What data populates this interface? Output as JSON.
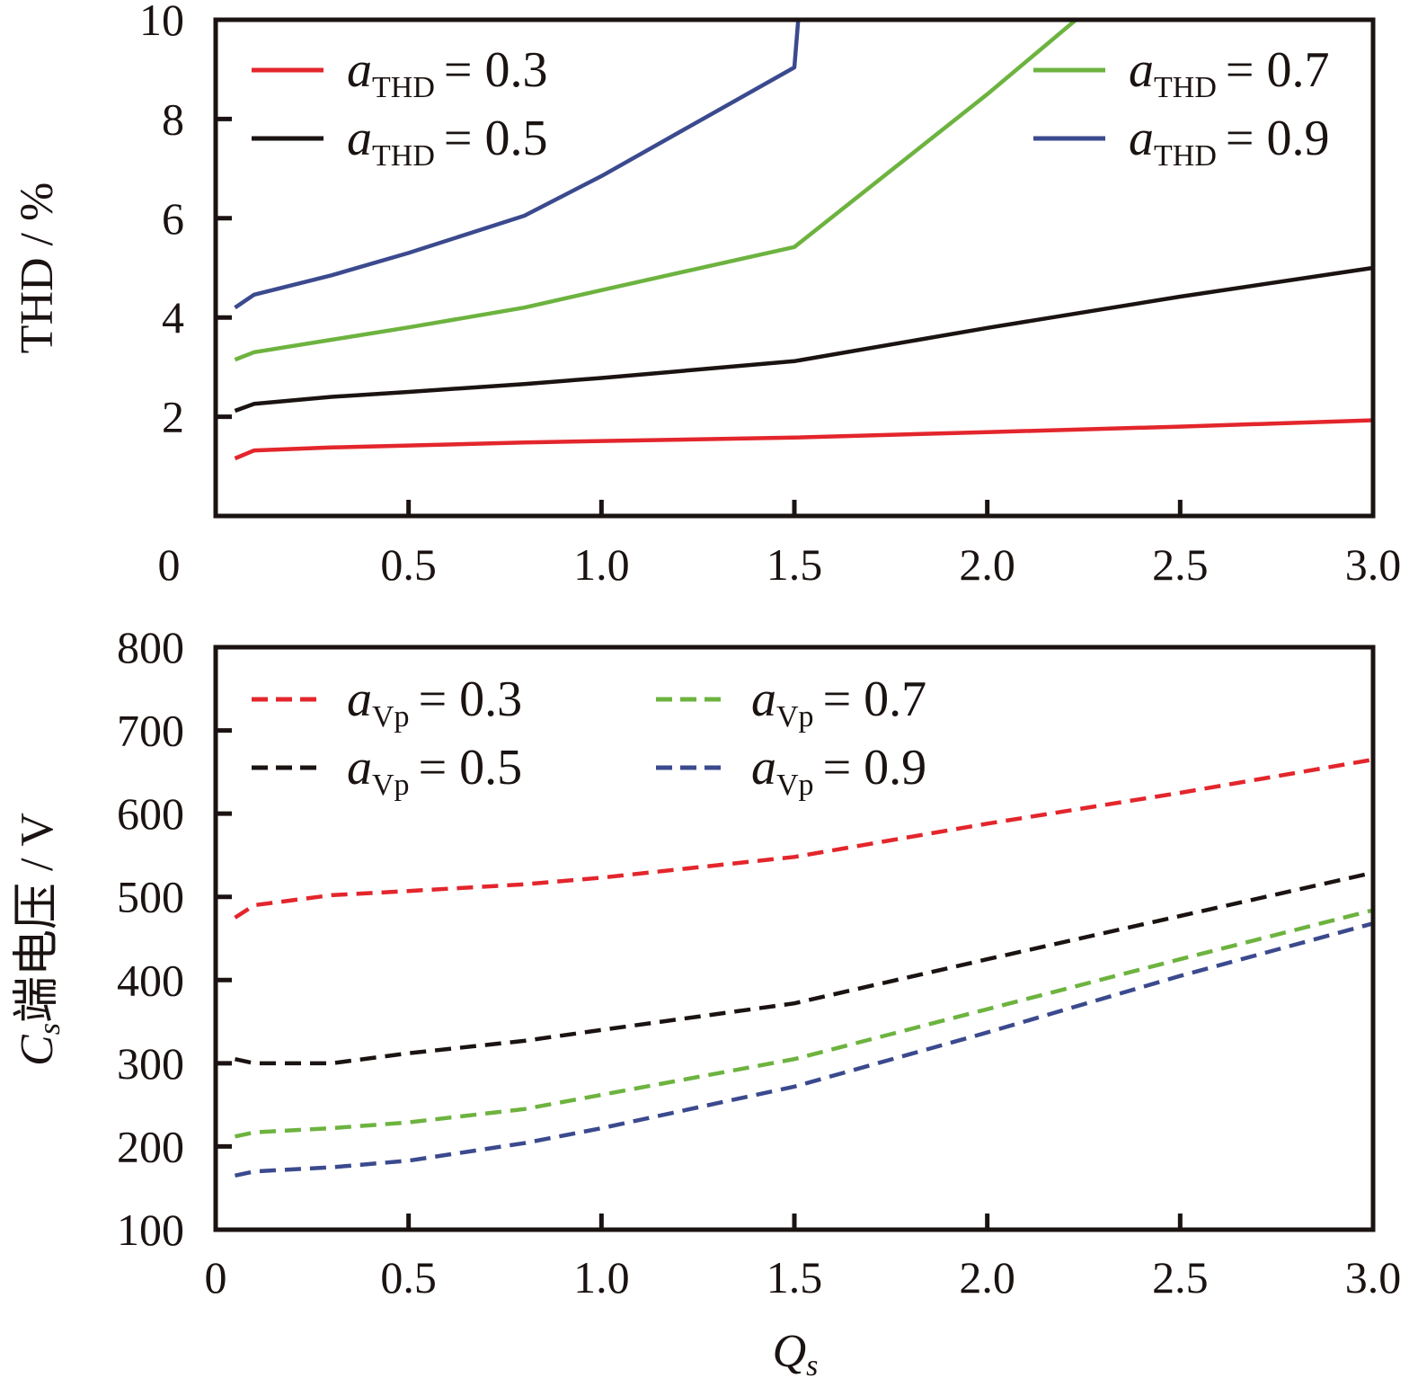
{
  "chart_data": [
    {
      "id": "thd",
      "type": "line",
      "title": "",
      "xlabel": "",
      "ylabel": "THD / %",
      "xlim": [
        0,
        3.0
      ],
      "ylim": [
        0,
        10
      ],
      "xticks": [
        0.5,
        1.0,
        1.5,
        2.0,
        2.5,
        3.0
      ],
      "xtick_labels": [
        "0.5",
        "1.0",
        "1.5",
        "2.0",
        "2.5",
        "3.0"
      ],
      "yticks": [
        2,
        4,
        6,
        8,
        10
      ],
      "ytick_labels": [
        "2",
        "4",
        "6",
        "8",
        "10"
      ],
      "origin_label": "0",
      "grid": false,
      "line_style": "solid",
      "legend_symbol": "a",
      "legend_subscript": "THD",
      "legend_placement": [
        "top-left",
        "top-right"
      ],
      "series": [
        {
          "name": "a_THD = 0.3",
          "value_label": "= 0.3",
          "color": "#e3262c",
          "x": [
            0.05,
            0.1,
            0.3,
            0.5,
            0.8,
            1.0,
            1.5,
            2.0,
            2.5,
            3.0
          ],
          "y": [
            1.16,
            1.32,
            1.38,
            1.42,
            1.48,
            1.51,
            1.58,
            1.69,
            1.8,
            1.93
          ]
        },
        {
          "name": "a_THD = 0.5",
          "value_label": "= 0.5",
          "color": "#1a1311",
          "x": [
            0.05,
            0.1,
            0.3,
            0.5,
            0.8,
            1.0,
            1.5,
            2.0,
            2.5,
            3.0
          ],
          "y": [
            2.12,
            2.26,
            2.4,
            2.5,
            2.66,
            2.78,
            3.12,
            3.79,
            4.42,
            5.0
          ]
        },
        {
          "name": "a_THD = 0.7",
          "value_label": "= 0.7",
          "color": "#6db33f",
          "x": [
            0.05,
            0.1,
            0.3,
            0.5,
            0.8,
            1.0,
            1.5,
            2.0,
            2.23
          ],
          "y": [
            3.15,
            3.3,
            3.55,
            3.8,
            4.2,
            4.55,
            5.42,
            8.5,
            10.0
          ]
        },
        {
          "name": "a_THD = 0.9",
          "value_label": "= 0.9",
          "color": "#3b4a8e",
          "x": [
            0.05,
            0.1,
            0.3,
            0.5,
            0.8,
            1.0,
            1.5,
            1.51
          ],
          "y": [
            4.2,
            4.46,
            4.85,
            5.3,
            6.05,
            6.85,
            9.04,
            10.0
          ]
        }
      ]
    },
    {
      "id": "voltage",
      "type": "line",
      "title": "",
      "xlabel": "Q",
      "xlabel_sub": "s",
      "ylabel": "端电压 / V",
      "ylabel_prefix": "C",
      "ylabel_prefix_sub": "s",
      "xlim": [
        0,
        3.0
      ],
      "ylim": [
        100,
        800
      ],
      "xticks": [
        0,
        0.5,
        1.0,
        1.5,
        2.0,
        2.5,
        3.0
      ],
      "xtick_labels": [
        "0",
        "0.5",
        "1.0",
        "1.5",
        "2.0",
        "2.5",
        "3.0"
      ],
      "yticks": [
        100,
        200,
        300,
        400,
        500,
        600,
        700,
        800
      ],
      "ytick_labels": [
        "100",
        "200",
        "300",
        "400",
        "500",
        "600",
        "700",
        "800"
      ],
      "grid": false,
      "line_style": "dashed",
      "legend_symbol": "a",
      "legend_subscript": "Vp",
      "legend_placement": [
        "top-left",
        "top-center"
      ],
      "series": [
        {
          "name": "a_Vp = 0.3",
          "value_label": "= 0.3",
          "color": "#e3262c",
          "x": [
            0.05,
            0.1,
            0.3,
            0.5,
            0.8,
            1.0,
            1.5,
            2.0,
            2.5,
            3.0
          ],
          "y": [
            475,
            490,
            502,
            507,
            515,
            523,
            548,
            588,
            625,
            665
          ]
        },
        {
          "name": "a_Vp = 0.5",
          "value_label": "= 0.5",
          "color": "#1a1311",
          "x": [
            0.05,
            0.1,
            0.3,
            0.5,
            0.8,
            1.0,
            1.5,
            2.0,
            2.5,
            3.0
          ],
          "y": [
            305,
            300,
            300,
            312,
            327,
            340,
            372,
            425,
            477,
            529
          ]
        },
        {
          "name": "a_Vp = 0.7",
          "value_label": "= 0.7",
          "color": "#6db33f",
          "x": [
            0.05,
            0.1,
            0.3,
            0.5,
            0.8,
            1.0,
            1.5,
            2.0,
            2.5,
            3.0
          ],
          "y": [
            212,
            217,
            222,
            229,
            245,
            262,
            305,
            365,
            425,
            484
          ]
        },
        {
          "name": "a_Vp = 0.9",
          "value_label": "= 0.9",
          "color": "#3b4a8e",
          "x": [
            0.05,
            0.1,
            0.3,
            0.5,
            0.8,
            1.0,
            1.5,
            2.0,
            2.5,
            3.0
          ],
          "y": [
            165,
            170,
            175,
            183,
            204,
            222,
            272,
            337,
            405,
            468
          ]
        }
      ]
    }
  ]
}
